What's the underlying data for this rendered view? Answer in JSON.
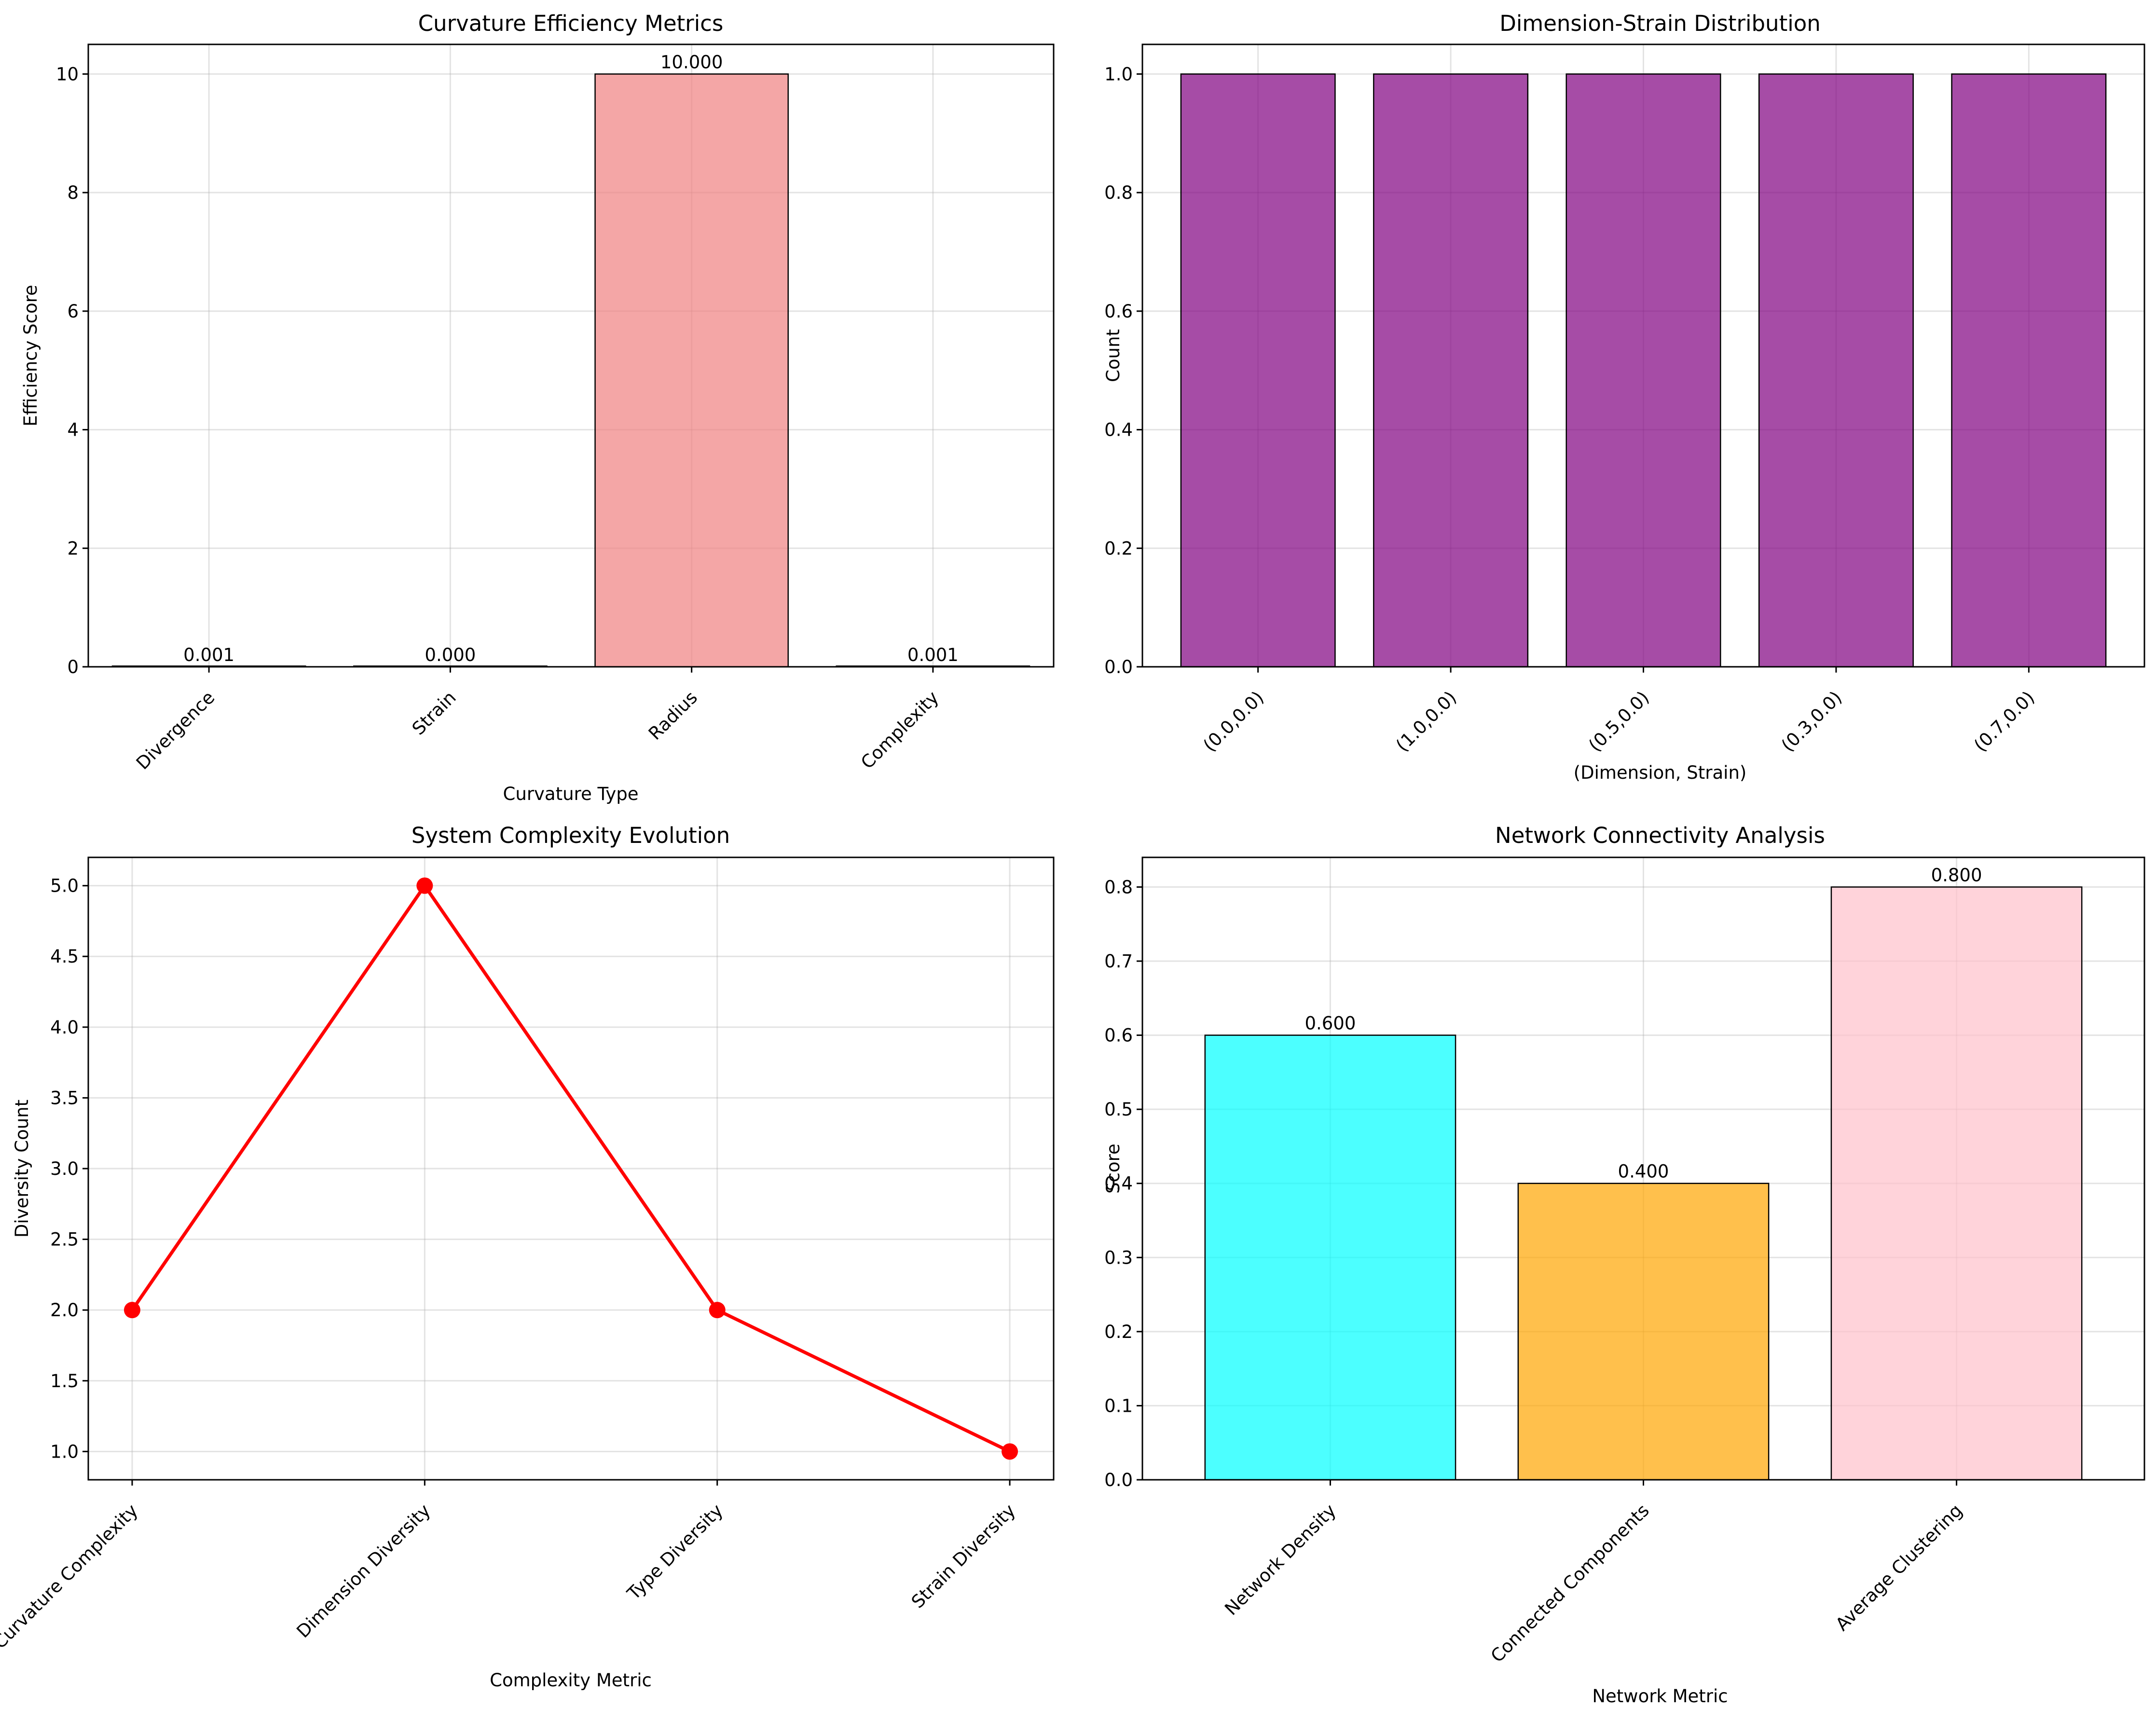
{
  "chart_data": [
    {
      "type": "bar",
      "title": "Curvature Efficiency Metrics",
      "xlabel": "Curvature Type",
      "ylabel": "Efficiency Score",
      "categories": [
        "Divergence",
        "Strain",
        "Radius",
        "Complexity"
      ],
      "values": [
        0.001,
        0.0,
        10.0,
        0.001
      ],
      "value_labels": [
        "0.001",
        "0.000",
        "10.000",
        "0.001"
      ],
      "colors": [
        "#f08080",
        "#f08080",
        "#f08080",
        "#f08080"
      ],
      "ylim": [
        0,
        10.5
      ],
      "yticks": [
        0,
        2,
        4,
        6,
        8,
        10
      ],
      "ytick_labels": [
        "0",
        "2",
        "4",
        "6",
        "8",
        "10"
      ],
      "grid": true
    },
    {
      "type": "bar",
      "title": "Dimension-Strain Distribution",
      "xlabel": "(Dimension, Strain)",
      "ylabel": "Count",
      "categories": [
        "(0.0,0.0)",
        "(1.0,0.0)",
        "(0.5,0.0)",
        "(0.3,0.0)",
        "(0.7,0.0)"
      ],
      "values": [
        1,
        1,
        1,
        1,
        1
      ],
      "colors": [
        "#800080",
        "#800080",
        "#800080",
        "#800080",
        "#800080"
      ],
      "ylim": [
        0,
        1.05
      ],
      "yticks": [
        0,
        0.2,
        0.4,
        0.6,
        0.8,
        1.0
      ],
      "ytick_labels": [
        "0.0",
        "0.2",
        "0.4",
        "0.6",
        "0.8",
        "1.0"
      ],
      "grid": true
    },
    {
      "type": "line",
      "title": "System Complexity Evolution",
      "xlabel": "Complexity Metric",
      "ylabel": "Diversity Count",
      "categories": [
        "Curvature Complexity",
        "Dimension Diversity",
        "Type Diversity",
        "Strain Diversity"
      ],
      "values": [
        2,
        5,
        2,
        1
      ],
      "color": "#ff0000",
      "ylim": [
        0.8,
        5.2
      ],
      "yticks": [
        1.0,
        1.5,
        2.0,
        2.5,
        3.0,
        3.5,
        4.0,
        4.5,
        5.0
      ],
      "ytick_labels": [
        "1.0",
        "1.5",
        "2.0",
        "2.5",
        "3.0",
        "3.5",
        "4.0",
        "4.5",
        "5.0"
      ],
      "grid": true
    },
    {
      "type": "bar",
      "title": "Network Connectivity Analysis",
      "xlabel": "Network Metric",
      "ylabel": "Score",
      "categories": [
        "Network Density",
        "Connected Components",
        "Average Clustering"
      ],
      "values": [
        0.6,
        0.4,
        0.8
      ],
      "value_labels": [
        "0.600",
        "0.400",
        "0.800"
      ],
      "colors": [
        "#00ffff",
        "#ffa500",
        "#ffc0cb"
      ],
      "ylim": [
        0,
        0.84
      ],
      "yticks": [
        0,
        0.1,
        0.2,
        0.3,
        0.4,
        0.5,
        0.6,
        0.7,
        0.8
      ],
      "ytick_labels": [
        "0.0",
        "0.1",
        "0.2",
        "0.3",
        "0.4",
        "0.5",
        "0.6",
        "0.7",
        "0.8"
      ],
      "grid": true
    }
  ]
}
